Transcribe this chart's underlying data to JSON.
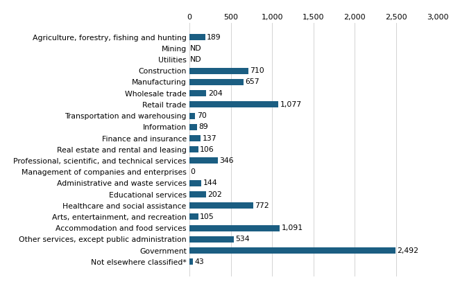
{
  "categories": [
    "Agriculture, forestry, fishing and hunting",
    "Mining",
    "Utilities",
    "Construction",
    "Manufacturing",
    "Wholesale trade",
    "Retail trade",
    "Transportation and warehousing",
    "Information",
    "Finance and insurance",
    "Real estate and rental and leasing",
    "Professional, scientific, and technical services",
    "Management of companies and enterprises",
    "Administrative and waste services",
    "Educational services",
    "Healthcare and social assistance",
    "Arts, entertainment, and recreation",
    "Accommodation and food services",
    "Other services, except public administration",
    "Government",
    "Not elsewhere classified*"
  ],
  "values": [
    189,
    null,
    null,
    710,
    657,
    204,
    1077,
    70,
    89,
    137,
    106,
    346,
    0,
    144,
    202,
    772,
    105,
    1091,
    534,
    2492,
    43
  ],
  "labels": [
    "189",
    "ND",
    "ND",
    "710",
    "657",
    "204",
    "1,077",
    "70",
    "89",
    "137",
    "106",
    "346",
    "0",
    "144",
    "202",
    "772",
    "105",
    "1,091",
    "534",
    "2,492",
    "43"
  ],
  "bar_color": "#1b5e82",
  "xlim": [
    0,
    3000
  ],
  "xticks": [
    0,
    500,
    1000,
    1500,
    2000,
    2500,
    3000
  ],
  "xtick_labels": [
    "0",
    "500",
    "1,000",
    "1,500",
    "2,000",
    "2,500",
    "3,000"
  ],
  "bar_height": 0.55,
  "label_fontsize": 7.8,
  "tick_fontsize": 8.0,
  "value_fontsize": 7.8,
  "background_color": "#ffffff",
  "figwidth": 6.5,
  "figheight": 4.07,
  "dpi": 100
}
